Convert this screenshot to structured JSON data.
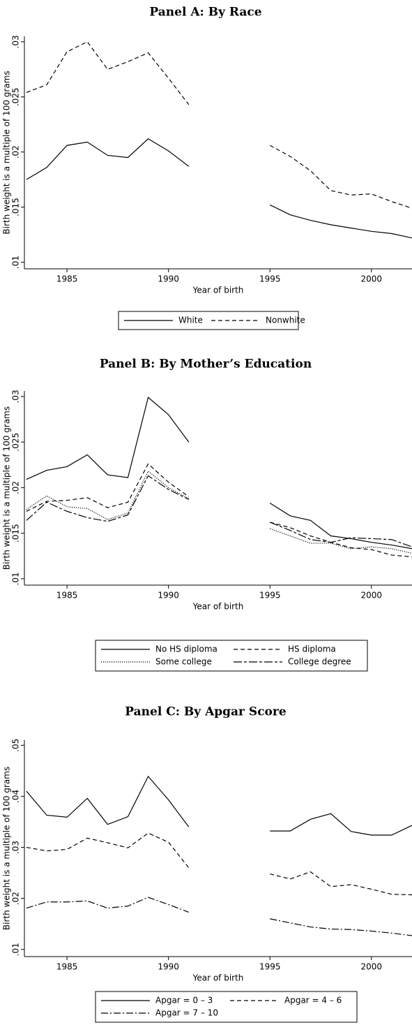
{
  "chart_data": [
    {
      "type": "line",
      "title": "Panel A: By Race",
      "xlabel": "Year of birth",
      "ylabel": "Birth weight is a multiple of 100 grams",
      "x": [
        1983,
        1984,
        1985,
        1986,
        1987,
        1988,
        1989,
        1990,
        1991,
        1992,
        1993,
        1994,
        1995,
        1996,
        1997,
        1998,
        1999,
        2000,
        2001,
        2002
      ],
      "xlim": [
        1982.9,
        2002
      ],
      "xticks": [
        1985,
        1990,
        1995,
        2000
      ],
      "ylim": [
        0.0094,
        0.0305
      ],
      "yticks": [
        {
          "value": 0.01,
          "label": ".01"
        },
        {
          "value": 0.015,
          "label": ".015"
        },
        {
          "value": 0.02,
          "label": ".02"
        },
        {
          "value": 0.025,
          "label": ".025"
        },
        {
          "value": 0.03,
          "label": ".03"
        }
      ],
      "series": [
        {
          "name": "White",
          "color": "#000000",
          "dash": "solid",
          "values": [
            0.0175,
            0.0186,
            0.0206,
            0.0209,
            0.0197,
            0.0195,
            0.0212,
            0.0201,
            0.0187,
            null,
            null,
            null,
            0.0152,
            0.0143,
            0.0138,
            0.0134,
            0.0131,
            0.0128,
            0.0126,
            0.0122
          ]
        },
        {
          "name": "Nonwhite",
          "color": "#000000",
          "dash": "dashed",
          "values": [
            0.0254,
            0.0261,
            0.0291,
            0.03,
            0.0275,
            0.0282,
            0.029,
            0.0267,
            0.0243,
            null,
            null,
            null,
            0.0206,
            0.0196,
            0.0183,
            0.0165,
            0.0161,
            0.0162,
            0.0155,
            0.0149
          ]
        }
      ]
    },
    {
      "type": "line",
      "title": "Panel B: By Mother’s Education",
      "xlabel": "Year of birth",
      "ylabel": "Birth weight is a multiple of 100 grams",
      "x": [
        1983,
        1984,
        1985,
        1986,
        1987,
        1988,
        1989,
        1990,
        1991,
        1992,
        1993,
        1994,
        1995,
        1996,
        1997,
        1998,
        1999,
        2000,
        2001,
        2002
      ],
      "xlim": [
        1982.9,
        2002
      ],
      "xticks": [
        1985,
        1990,
        1995,
        2000
      ],
      "ylim": [
        0.0093,
        0.0306
      ],
      "yticks": [
        {
          "value": 0.01,
          "label": ".01"
        },
        {
          "value": 0.015,
          "label": ".015"
        },
        {
          "value": 0.02,
          "label": ".02"
        },
        {
          "value": 0.025,
          "label": ".025"
        },
        {
          "value": 0.03,
          "label": ".03"
        }
      ],
      "series": [
        {
          "name": "No HS diploma",
          "color": "#000000",
          "dash": "solid",
          "values": [
            0.0209,
            0.0219,
            0.0223,
            0.0236,
            0.0214,
            0.0211,
            0.0299,
            0.028,
            0.025,
            null,
            null,
            null,
            0.0183,
            0.0169,
            0.0164,
            0.0147,
            0.0144,
            0.014,
            0.0137,
            0.0133
          ]
        },
        {
          "name": "HS diploma",
          "color": "#000000",
          "dash": "dashed",
          "values": [
            0.0174,
            0.0185,
            0.0186,
            0.0189,
            0.0178,
            0.0184,
            0.0226,
            0.0206,
            0.019,
            null,
            null,
            null,
            0.0162,
            0.0156,
            0.0147,
            0.014,
            0.0134,
            0.0132,
            0.0126,
            0.0124
          ]
        },
        {
          "name": "Some college",
          "color": "#000000",
          "dash": "dotted",
          "values": [
            0.0176,
            0.0191,
            0.0179,
            0.0177,
            0.0165,
            0.0172,
            0.0218,
            0.02,
            0.0188,
            null,
            null,
            null,
            0.0155,
            0.0147,
            0.0139,
            0.0139,
            0.0133,
            0.0135,
            0.0133,
            0.0128
          ]
        },
        {
          "name": "College degree",
          "color": "#000000",
          "dash": "longdash",
          "values": [
            0.0164,
            0.0184,
            0.0174,
            0.0167,
            0.0163,
            0.017,
            0.0213,
            0.0198,
            0.0187,
            null,
            null,
            null,
            0.0162,
            0.0153,
            0.0143,
            0.014,
            0.0145,
            0.0144,
            0.0143,
            0.0135
          ]
        }
      ]
    },
    {
      "type": "line",
      "title": "Panel C: By Apgar Score",
      "xlabel": "Year of birth",
      "ylabel": "Birth weight is a multiple of 100 grams",
      "x": [
        1983,
        1984,
        1985,
        1986,
        1987,
        1988,
        1989,
        1990,
        1991,
        1992,
        1993,
        1994,
        1995,
        1996,
        1997,
        1998,
        1999,
        2000,
        2001,
        2002
      ],
      "xlim": [
        1982.9,
        2002
      ],
      "xticks": [
        1985,
        1990,
        1995,
        2000
      ],
      "ylim": [
        0.0086,
        0.051
      ],
      "yticks": [
        {
          "value": 0.01,
          "label": ".01"
        },
        {
          "value": 0.02,
          "label": ".02"
        },
        {
          "value": 0.03,
          "label": ".03"
        },
        {
          "value": 0.04,
          "label": ".04"
        },
        {
          "value": 0.05,
          "label": ".05"
        }
      ],
      "series": [
        {
          "name": "Apgar = 0 – 3",
          "color": "#000000",
          "dash": "solid",
          "values": [
            0.041,
            0.0363,
            0.0359,
            0.0396,
            0.0345,
            0.036,
            0.0439,
            0.0393,
            0.034,
            null,
            null,
            null,
            0.0332,
            0.0332,
            0.0355,
            0.0366,
            0.0331,
            0.0324,
            0.0324,
            0.0343
          ]
        },
        {
          "name": "Apgar = 4 – 6",
          "color": "#000000",
          "dash": "dashed",
          "values": [
            0.03,
            0.0293,
            0.0296,
            0.0318,
            0.0309,
            0.0299,
            0.0328,
            0.031,
            0.026,
            null,
            null,
            null,
            0.0248,
            0.0238,
            0.0252,
            0.0223,
            0.0227,
            0.0218,
            0.0208,
            0.0207
          ]
        },
        {
          "name": "Apgar = 7 – 10",
          "color": "#000000",
          "dash": "dashdot",
          "values": [
            0.0181,
            0.0193,
            0.0193,
            0.0195,
            0.0181,
            0.0185,
            0.0202,
            0.0188,
            0.0173,
            null,
            null,
            null,
            0.016,
            0.0152,
            0.0144,
            0.014,
            0.0139,
            0.0136,
            0.0132,
            0.0127
          ]
        }
      ]
    }
  ]
}
